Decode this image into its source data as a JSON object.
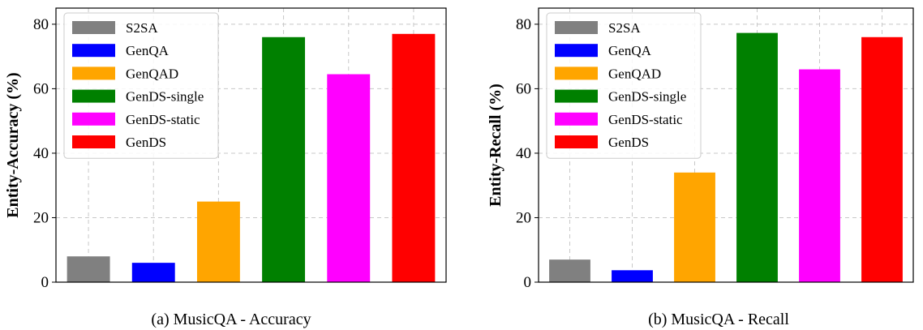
{
  "chart_data": [
    {
      "type": "bar",
      "caption": "(a) MusicQA - Accuracy",
      "ylabel": "Entity-Accuracy (%)",
      "xlabel": "",
      "ylim": [
        0,
        85
      ],
      "yticks": [
        0,
        20,
        40,
        60,
        80
      ],
      "grid": true,
      "legend_position": "top-left",
      "categories": [
        "S2SA",
        "GenQA",
        "GenQAD",
        "GenDS-single",
        "GenDS-static",
        "GenDS"
      ],
      "values": [
        8.0,
        6.0,
        25.0,
        76.0,
        64.5,
        77.0
      ],
      "colors": [
        "#808080",
        "#0000ff",
        "#ffa500",
        "#008000",
        "#ff00ff",
        "#ff0000"
      ]
    },
    {
      "type": "bar",
      "caption": "(b) MusicQA - Recall",
      "ylabel": "Entity-Recall (%)",
      "xlabel": "",
      "ylim": [
        0,
        85
      ],
      "yticks": [
        0,
        20,
        40,
        60,
        80
      ],
      "grid": true,
      "legend_position": "top-left",
      "categories": [
        "S2SA",
        "GenQA",
        "GenQAD",
        "GenDS-single",
        "GenDS-static",
        "GenDS"
      ],
      "values": [
        7.0,
        3.7,
        34.0,
        77.3,
        66.0,
        76.0
      ],
      "colors": [
        "#808080",
        "#0000ff",
        "#ffa500",
        "#008000",
        "#ff00ff",
        "#ff0000"
      ]
    }
  ]
}
